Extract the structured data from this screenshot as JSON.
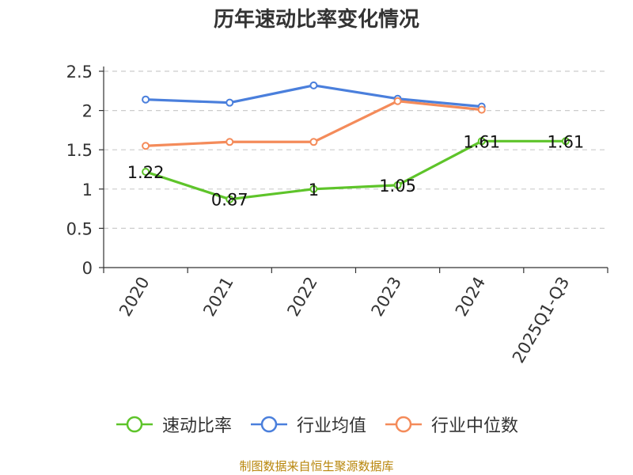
{
  "chart_data": {
    "type": "line",
    "title": "历年速动比率变化情况",
    "categories": [
      "2020",
      "2021",
      "2022",
      "2023",
      "2024",
      "2025Q1-Q3"
    ],
    "ylim": [
      0,
      2.5
    ],
    "yticks": [
      "0",
      "0.5",
      "1",
      "1.5",
      "2",
      "2.5"
    ],
    "grid": true,
    "legend_position": "bottom",
    "series": [
      {
        "name": "速动比率",
        "color": "#5ec42a",
        "values": [
          1.22,
          0.87,
          1.0,
          1.05,
          1.61,
          1.61
        ],
        "labels": [
          "1.22",
          "0.87",
          "1",
          "1.05",
          "1.61",
          "1.61"
        ]
      },
      {
        "name": "行业均值",
        "color": "#4a7fdc",
        "values": [
          2.14,
          2.1,
          2.32,
          2.15,
          2.05,
          null
        ]
      },
      {
        "name": "行业中位数",
        "color": "#f48b5a",
        "values": [
          1.55,
          1.6,
          1.6,
          2.12,
          2.01,
          null
        ]
      }
    ]
  },
  "source_note": "制图数据来自恒生聚源数据库"
}
